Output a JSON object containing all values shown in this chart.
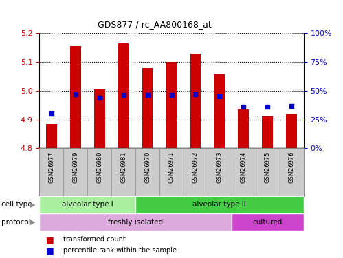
{
  "title": "GDS877 / rc_AA800168_at",
  "samples": [
    "GSM26977",
    "GSM26979",
    "GSM26980",
    "GSM26981",
    "GSM26970",
    "GSM26971",
    "GSM26972",
    "GSM26973",
    "GSM26974",
    "GSM26975",
    "GSM26976"
  ],
  "transformed_count": [
    4.885,
    5.155,
    5.005,
    5.165,
    5.078,
    5.1,
    5.128,
    5.058,
    4.935,
    4.91,
    4.92
  ],
  "percentile_rank": [
    30,
    47,
    44,
    46,
    46,
    46,
    47,
    45,
    36,
    36,
    37
  ],
  "bar_bottom": 4.8,
  "ylim_left": [
    4.8,
    5.2
  ],
  "ylim_right": [
    0,
    100
  ],
  "yticks_left": [
    4.8,
    4.9,
    5.0,
    5.1,
    5.2
  ],
  "yticks_right": [
    0,
    25,
    50,
    75,
    100
  ],
  "ytick_labels_right": [
    "0%",
    "25%",
    "50%",
    "75%",
    "100%"
  ],
  "bar_color": "#cc0000",
  "dot_color": "#0000cc",
  "cell_type_groups": [
    {
      "label": "alveolar type I",
      "start": 0,
      "end": 4,
      "color": "#aaeea0"
    },
    {
      "label": "alveolar type II",
      "start": 4,
      "end": 11,
      "color": "#44cc44"
    }
  ],
  "protocol_groups": [
    {
      "label": "freshly isolated",
      "start": 0,
      "end": 8,
      "color": "#ddaadd"
    },
    {
      "label": "cultured",
      "start": 8,
      "end": 11,
      "color": "#cc44cc"
    }
  ],
  "legend_entries": [
    {
      "label": "transformed count",
      "color": "#cc0000"
    },
    {
      "label": "percentile rank within the sample",
      "color": "#0000cc"
    }
  ],
  "grid_color": "black",
  "left_tick_color": "#cc0000",
  "right_tick_color": "#0000cc",
  "label_bg_color": "#cccccc",
  "label_border_color": "#888888"
}
